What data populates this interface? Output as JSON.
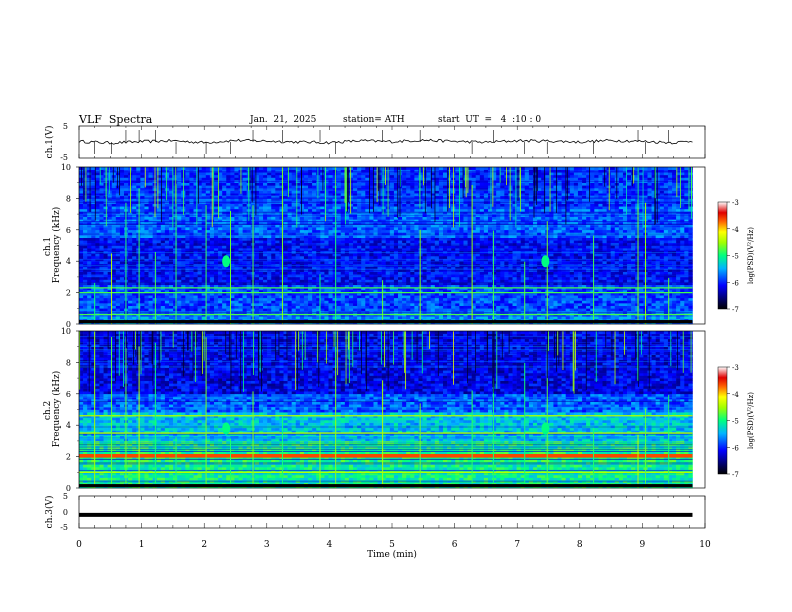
{
  "header": {
    "title": "VLF  Spectra",
    "date": "Jan.  21,  2025",
    "station": "station= ATH",
    "start_ut": "start  UT  =   4  :10 : 0"
  },
  "chart_data": [
    {
      "type": "line",
      "name": "ch1-waveform",
      "ylabel": "ch.1(V)",
      "ylim": [
        -5,
        5
      ],
      "yticks": [
        "5",
        "-5"
      ],
      "x_range": [
        0,
        10
      ],
      "baseline_value": 0,
      "x": [
        0,
        0.5,
        1,
        1.5,
        2,
        2.5,
        3,
        3.5,
        4,
        4.5,
        5,
        5.5,
        6,
        6.5,
        7,
        7.5,
        8,
        8.5,
        9,
        9.5,
        9.8
      ],
      "y": [
        0.2,
        -0.3,
        0.1,
        0.4,
        -0.2,
        0.5,
        0.3,
        0.0,
        -0.2,
        0.4,
        0.1,
        0.6,
        0.2,
        -0.1,
        0.4,
        0.3,
        0.0,
        0.5,
        0.2,
        -0.2,
        0.3
      ],
      "spike_times": [
        0.25,
        0.52,
        0.75,
        0.96,
        1.22,
        1.55,
        2.03,
        2.42,
        2.78,
        3.25,
        3.85,
        4.1,
        4.85,
        5.45,
        6.28,
        6.62,
        7.12,
        7.48,
        8.22,
        8.93,
        9.05,
        9.42
      ]
    },
    {
      "type": "heatmap",
      "name": "ch1-spectrogram",
      "ylabel": "ch.1\nFrequency (kHz)",
      "ylim": [
        0,
        10
      ],
      "yticks": [
        "0",
        "2",
        "4",
        "6",
        "8",
        "10"
      ],
      "x_range": [
        0,
        10
      ],
      "data_end_min": 9.8,
      "colorbar": {
        "label": "log(PSD)(V²/Hz)",
        "range": [
          -7,
          -3
        ],
        "ticks": [
          "-3",
          "-4",
          "-5",
          "-6",
          "-7"
        ]
      },
      "features": {
        "tones_khz": [
          2.0,
          2.3,
          0.6
        ],
        "sferic_times_min": [
          0.25,
          0.52,
          0.75,
          0.96,
          1.22,
          1.55,
          2.03,
          2.42,
          2.78,
          3.25,
          3.85,
          4.1,
          4.85,
          5.45,
          6.28,
          6.62,
          7.12,
          7.48,
          8.22,
          8.93,
          9.05,
          9.42
        ],
        "blobs": [
          {
            "t": 2.35,
            "f": 4.0
          },
          {
            "t": 7.45,
            "f": 4.0
          }
        ]
      }
    },
    {
      "type": "heatmap",
      "name": "ch2-spectrogram",
      "ylabel": "ch.2\nFrequency (kHz)",
      "ylim": [
        0,
        10
      ],
      "yticks": [
        "0",
        "2",
        "4",
        "6",
        "8",
        "10"
      ],
      "x_range": [
        0,
        10
      ],
      "data_end_min": 9.8,
      "colorbar": {
        "label": "log(PSD)(V²/Hz)",
        "range": [
          -7,
          -3
        ],
        "ticks": [
          "-3",
          "-4",
          "-5",
          "-6",
          "-7"
        ]
      },
      "features": {
        "tones_khz": [
          2.0,
          2.1,
          3.5,
          4.6,
          1.0
        ],
        "sferic_times_min": [
          0.25,
          0.52,
          0.75,
          0.96,
          1.22,
          1.55,
          2.03,
          2.42,
          2.78,
          3.25,
          3.85,
          4.1,
          4.85,
          5.45,
          6.28,
          6.62,
          7.12,
          7.48,
          8.22,
          8.93,
          9.05,
          9.42
        ],
        "blobs": [
          {
            "t": 2.35,
            "f": 3.8
          },
          {
            "t": 7.45,
            "f": 3.8
          }
        ]
      }
    },
    {
      "type": "line",
      "name": "ch3-waveform",
      "ylabel": "ch.3(V)",
      "ylim": [
        -5,
        5
      ],
      "yticks": [
        "5",
        "0",
        "-5"
      ],
      "x_range": [
        0,
        10
      ],
      "x": [
        0,
        9.8
      ],
      "y": [
        -0.9,
        -0.9
      ]
    }
  ],
  "xaxis": {
    "label": "Time  (min)",
    "ticks": [
      "0",
      "1",
      "2",
      "3",
      "4",
      "5",
      "6",
      "7",
      "8",
      "9",
      "10"
    ]
  }
}
